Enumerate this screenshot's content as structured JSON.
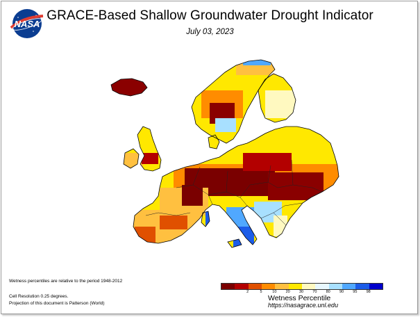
{
  "header": {
    "logo_text": "NASA",
    "title": "GRACE-Based Shallow Groundwater Drought Indicator",
    "date": "July 03, 2023"
  },
  "notes": {
    "period": "Wetness percentiles are relative to the period 1948-2012",
    "resolution": "Cell Resolution 0.25 degrees.",
    "projection": "Projection of this document is Patterson (World)"
  },
  "legend": {
    "title": "Wetness Percentile",
    "source": "https://nasagrace.unl.edu",
    "colors": [
      "#7a0000",
      "#b30000",
      "#e05000",
      "#ff8c00",
      "#ffc040",
      "#ffe800",
      "#fff9c0",
      "#e8f8ff",
      "#a8e0ff",
      "#50a8ff",
      "#1c5ce8",
      "#0000cc"
    ],
    "tick_labels": [
      "2",
      "5",
      "10",
      "20",
      "30",
      "70",
      "80",
      "90",
      "95",
      "98"
    ]
  },
  "map": {
    "region": "Europe",
    "colors": {
      "extreme_dry": "#7a0000",
      "severe_dry": "#b30000",
      "moderate_dry": "#e05000",
      "dry": "#ff8c00",
      "abnormal_dry": "#ffc040",
      "near_normal": "#ffe800",
      "wet": "#50a8ff",
      "very_wet": "#1c5ce8",
      "extreme_wet": "#0000cc",
      "sea": "#ffffff",
      "border": "#000000"
    }
  }
}
